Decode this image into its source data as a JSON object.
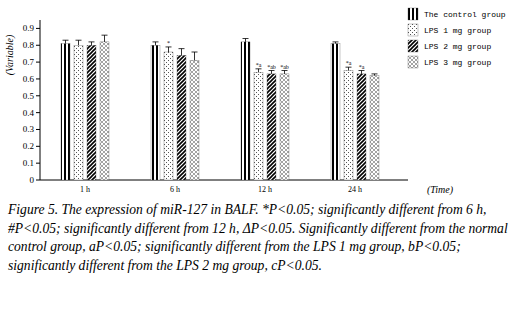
{
  "chart_data": {
    "type": "bar",
    "caption": "Figure 5. The expression of miR-127 in BALF. *P<0.05; significantly different from 6 h, #P<0.05; significantly different from 12 h, ΔP<0.05. Significantly different from the normal control group, aP<0.05; significantly different from the LPS 1 mg group, bP<0.05; significantly different from the LPS 2 mg group, cP<0.05.",
    "x_label": "(Time)",
    "y_label": "(Variable)",
    "categories": [
      "1 h",
      "6 h",
      "12 h",
      "24 h"
    ],
    "series": [
      {
        "name": "The control group",
        "color": "#000000",
        "values": [
          0.81,
          0.8,
          0.82,
          0.81
        ],
        "errors": [
          0.02,
          0.02,
          0.02,
          0.01
        ],
        "annotations": [
          null,
          null,
          null,
          null
        ]
      },
      {
        "name": "LPS 1 mg group",
        "color": "#555555",
        "values": [
          0.8,
          0.76,
          0.64,
          0.65
        ],
        "errors": [
          0.03,
          0.03,
          0.02,
          0.02
        ],
        "annotations": [
          null,
          "*",
          "*a",
          "*a"
        ]
      },
      {
        "name": "LPS 2 mg group",
        "color": "#000000",
        "values": [
          0.8,
          0.74,
          0.63,
          0.63
        ],
        "errors": [
          0.02,
          0.04,
          0.02,
          0.02
        ],
        "annotations": [
          null,
          null,
          "*ab",
          "*a"
        ]
      },
      {
        "name": "LPS 3 mg group",
        "color": "#666666",
        "values": [
          0.82,
          0.71,
          0.63,
          0.62
        ],
        "errors": [
          0.04,
          0.05,
          0.02,
          0.01
        ],
        "annotations": [
          null,
          null,
          "*ab",
          null
        ]
      }
    ],
    "ylim": [
      0,
      0.95
    ],
    "yticks": [
      0,
      0.1,
      0.2,
      0.3,
      0.4,
      0.5,
      0.6,
      0.7,
      0.8,
      0.9
    ],
    "grid": false,
    "legend": "top-right"
  }
}
